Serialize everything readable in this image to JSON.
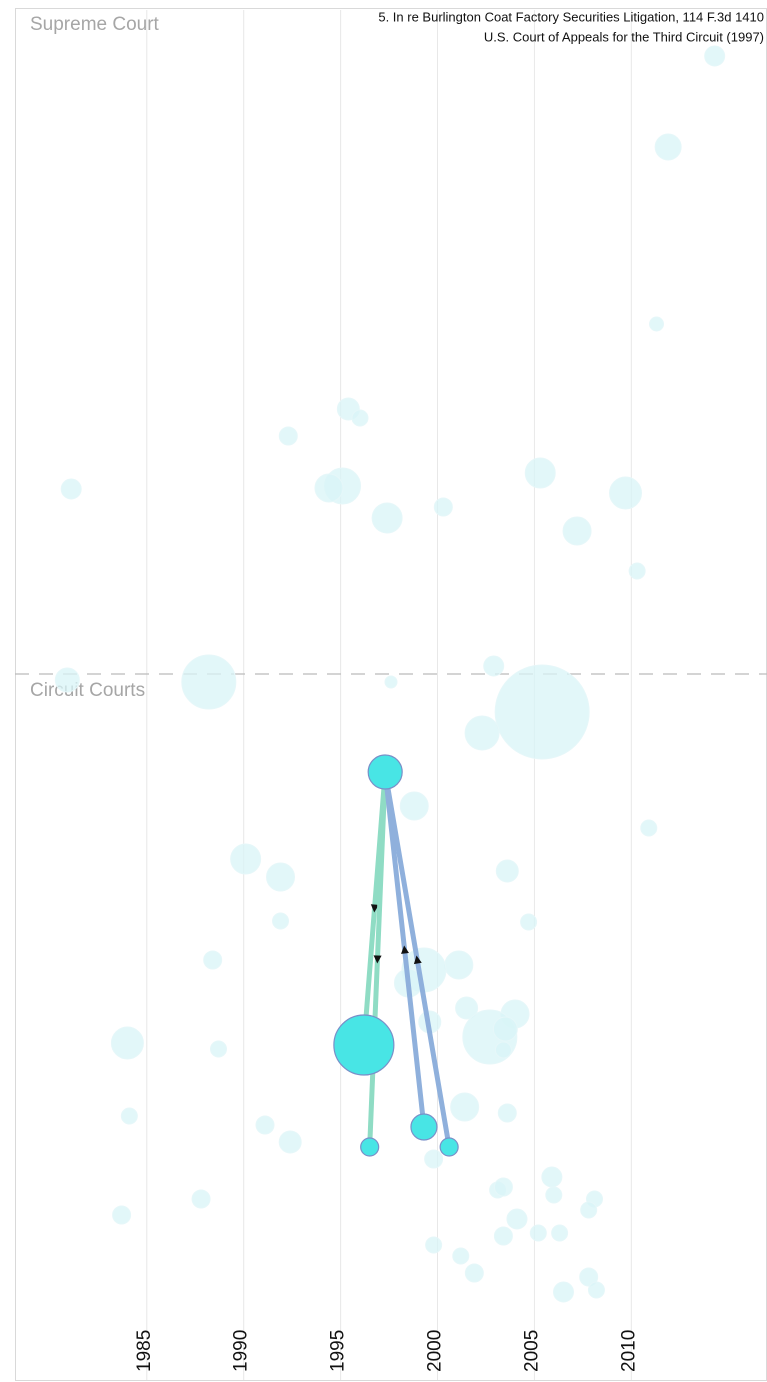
{
  "chart_data": {
    "type": "scatter",
    "title": "5. In re Burlington Coat Factory Securities Litigation, 114 F.3d 1410",
    "subtitle": "U.S. Court of Appeals for the Third Circuit (1997)",
    "regions": [
      "Supreme Court",
      "Circuit Courts"
    ],
    "region_boundary": 70.6,
    "xlim": [
      1978.2,
      2017
    ],
    "xticks": [
      1985,
      1990,
      1995,
      2000,
      2005,
      2010
    ],
    "ylim": [
      0,
      137
    ],
    "grid": true,
    "color": "#d8f4f7",
    "highlight_color": "#48e5e5",
    "points": {
      "x": [
        2014.3,
        2011.9,
        2011.3,
        1995.4,
        1996.0,
        1992.3,
        1981.1,
        1995.1,
        1994.4,
        2005.3,
        2009.7,
        1997.4,
        2000.3,
        2007.2,
        2010.3,
        1988.2,
        1980.9,
        2002.9,
        1997.6,
        2005.4,
        2002.3,
        1998.8,
        2010.9,
        1990.1,
        1991.9,
        2003.6,
        1991.9,
        2004.7,
        1988.4,
        2001.1,
        1999.3,
        1998.5,
        2001.5,
        2004.0,
        1984.0,
        1988.7,
        2002.7,
        1999.6,
        2003.4,
        2003.5,
        2001.4,
        1984.1,
        2003.6,
        1991.1,
        1992.4,
        1999.8,
        2005.9,
        2003.1,
        2006.0,
        2003.4,
        2008.1,
        2007.8,
        1987.8,
        2004.1,
        1983.7,
        2003.4,
        2005.2,
        2006.3,
        1999.8,
        2001.2,
        2001.9,
        2007.8,
        2008.2,
        2006.5
      ],
      "y": [
        132.4,
        123.3,
        105.6,
        97.1,
        96.2,
        94.4,
        89.1,
        89.4,
        89.2,
        90.7,
        88.7,
        86.2,
        87.3,
        84.9,
        80.9,
        69.8,
        70.0,
        71.4,
        69.8,
        66.8,
        64.7,
        57.4,
        55.2,
        52.1,
        50.3,
        50.9,
        45.9,
        45.8,
        42.0,
        41.5,
        41.0,
        39.7,
        37.2,
        36.6,
        33.7,
        33.1,
        34.3,
        35.8,
        33.0,
        35.1,
        27.3,
        26.4,
        26.7,
        25.5,
        23.8,
        22.1,
        20.3,
        19.0,
        18.5,
        19.3,
        18.1,
        17.0,
        18.1,
        16.1,
        16.5,
        14.4,
        14.7,
        14.7,
        13.5,
        12.4,
        10.7,
        10.3,
        9.0,
        8.8
      ],
      "size": [
        10,
        13,
        7,
        11,
        8,
        9,
        10,
        18,
        14,
        15,
        16,
        15,
        9,
        14,
        8,
        27,
        12,
        10,
        6,
        47,
        17,
        14,
        8,
        15,
        14,
        11,
        8,
        8,
        9,
        14,
        22,
        14,
        11,
        14,
        16,
        8,
        27,
        11,
        8,
        12,
        14,
        8,
        9,
        9,
        11,
        9,
        10,
        8,
        8,
        9,
        8,
        8,
        9,
        10,
        9,
        9,
        8,
        8,
        8,
        8,
        9,
        9,
        8,
        10
      ]
    },
    "highlight": {
      "x": [
        1997.3,
        1996.2,
        1996.5,
        1999.3,
        2000.6
      ],
      "y": [
        60.8,
        33.5,
        23.3,
        25.3,
        23.3
      ],
      "size": [
        17,
        30,
        9,
        13,
        9
      ]
    },
    "links": [
      {
        "from": 0,
        "to": 1,
        "color": "#8fdcc4"
      },
      {
        "from": 0,
        "to": 2,
        "color": "#8fdcc4"
      },
      {
        "from": 3,
        "to": 0,
        "color": "#8fb0dc"
      },
      {
        "from": 4,
        "to": 0,
        "color": "#8fb0dc"
      }
    ]
  }
}
